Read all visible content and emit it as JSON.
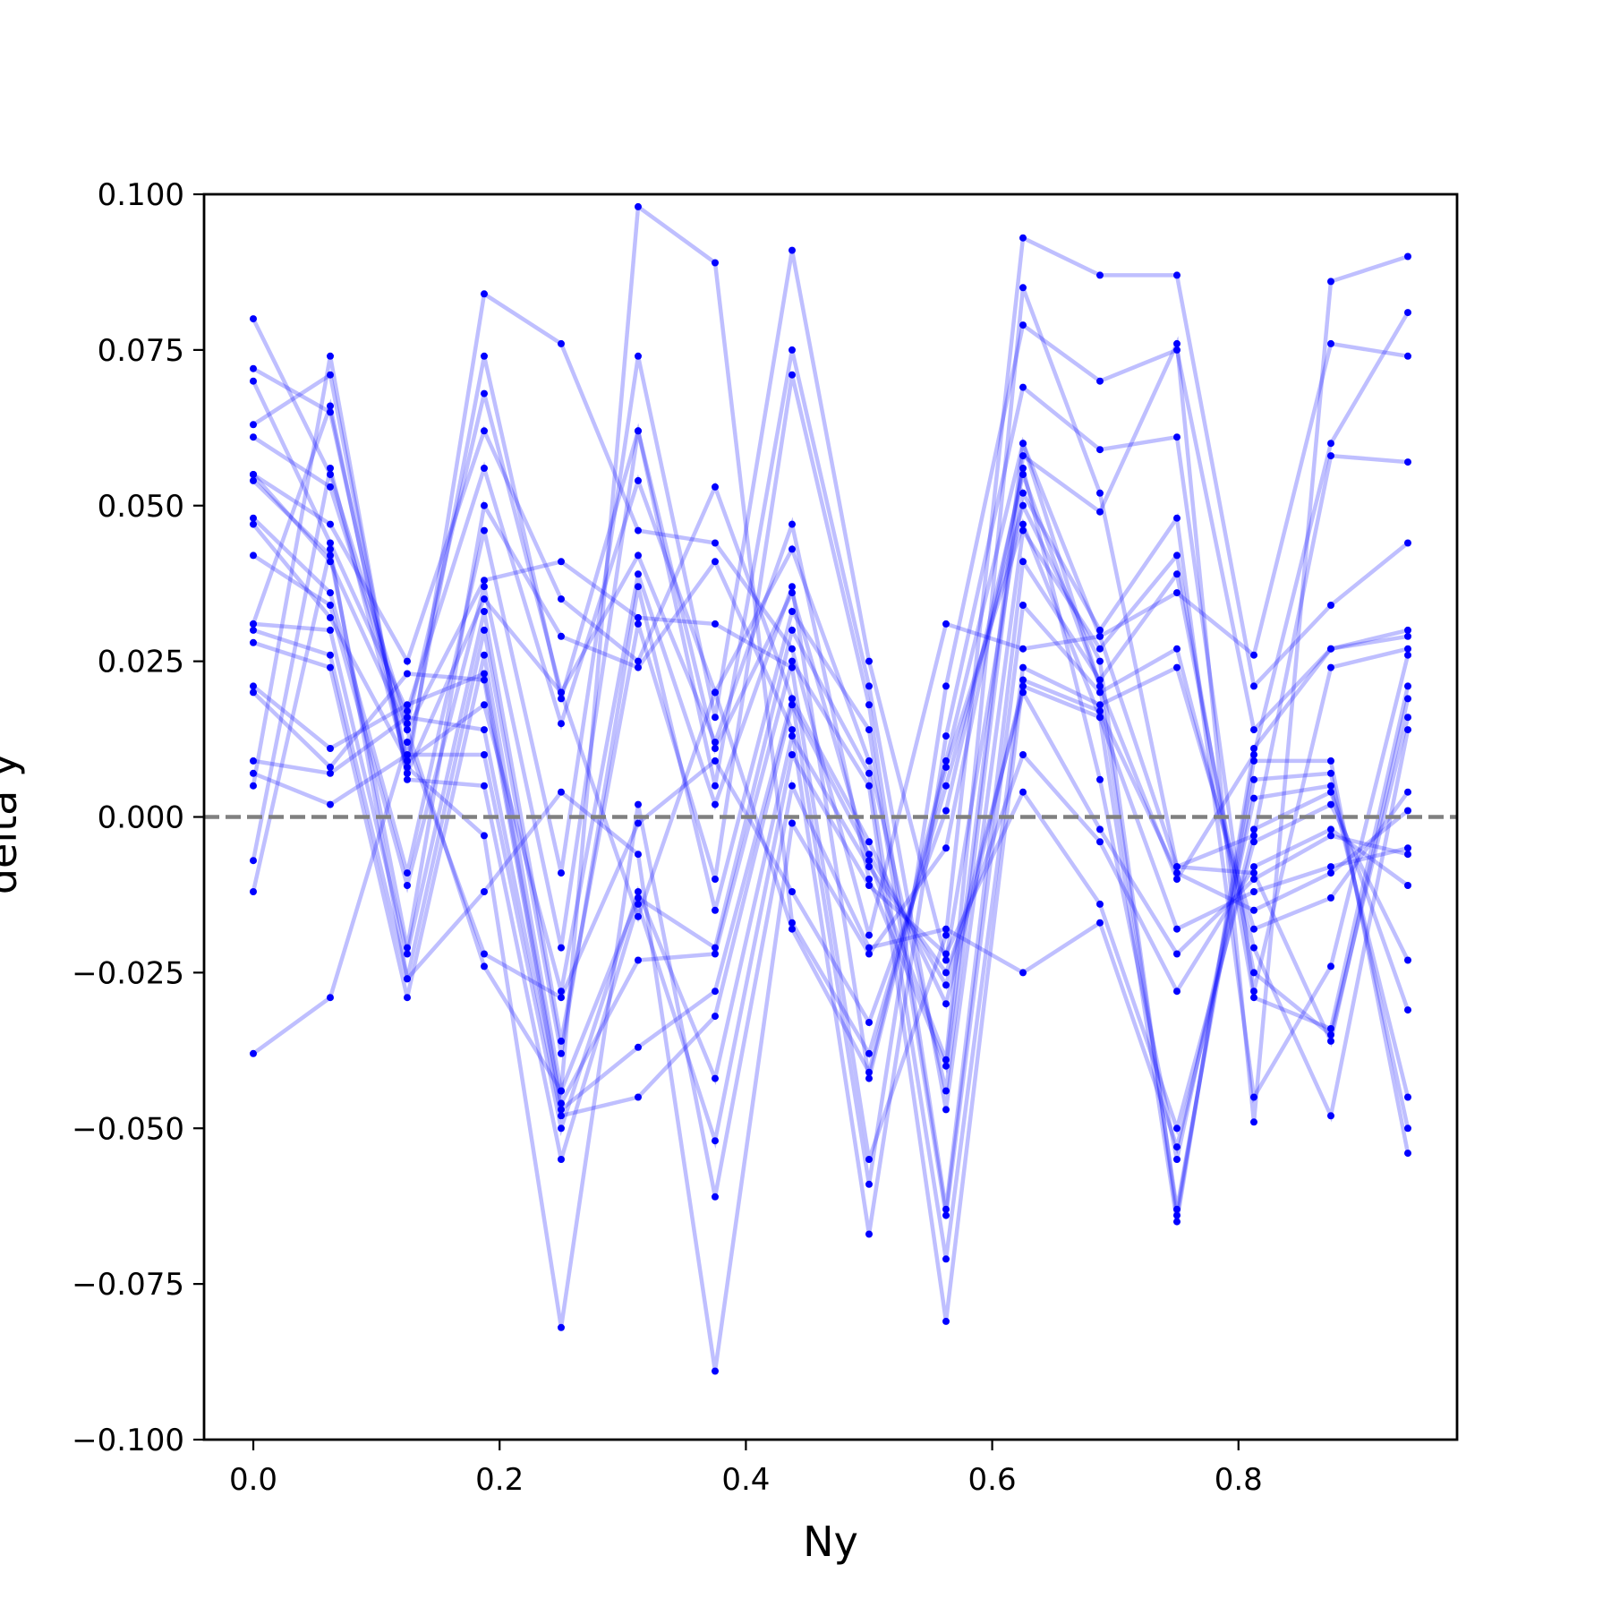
{
  "chart_data": {
    "type": "line",
    "title": "",
    "xlabel": "Ny",
    "ylabel": "delta y",
    "xlim": [
      -0.04,
      0.9775
    ],
    "ylim": [
      -0.1,
      0.1
    ],
    "xticks": [
      "0.0",
      "0.2",
      "0.4",
      "0.6",
      "0.8"
    ],
    "xtick_values": [
      0.0,
      0.2,
      0.4,
      0.6,
      0.8
    ],
    "yticks": [
      "0.100",
      "0.075",
      "0.050",
      "0.025",
      "0.000",
      "−0.025",
      "−0.050",
      "−0.075",
      "−0.100"
    ],
    "ytick_values": [
      0.1,
      0.075,
      0.05,
      0.025,
      0.0,
      -0.025,
      -0.05,
      -0.075,
      -0.1
    ],
    "reference_line": {
      "y": 0.0,
      "style": "dashed",
      "color": "#808080"
    },
    "series_color": "#0000ff",
    "line_alpha": 0.25,
    "grid": false,
    "legend": "none",
    "x": [
      0.0,
      0.0625,
      0.125,
      0.1875,
      0.25,
      0.3125,
      0.375,
      0.4375,
      0.5,
      0.5625,
      0.625,
      0.6875,
      0.75,
      0.8125,
      0.875,
      0.9375
    ],
    "series": [
      {
        "values": [
          0.08,
          0.055,
          0.015,
          0.068,
          0.02,
          0.042,
          0.012,
          0.047,
          -0.01,
          -0.04,
          0.06,
          0.021,
          -0.01,
          0.01,
          0.06,
          0.081
        ]
      },
      {
        "values": [
          0.072,
          0.065,
          0.009,
          0.074,
          0.019,
          0.062,
          0.011,
          0.036,
          -0.007,
          -0.039,
          0.085,
          0.052,
          -0.008,
          -0.003,
          0.058,
          0.057
        ]
      },
      {
        "values": [
          0.07,
          0.044,
          0.017,
          0.056,
          0.015,
          0.054,
          0.02,
          0.043,
          0.009,
          -0.044,
          0.058,
          0.049,
          0.076,
          -0.049,
          0.086,
          0.09
        ]
      },
      {
        "values": [
          0.063,
          0.071,
          0.007,
          0.084,
          0.076,
          0.046,
          0.044,
          0.027,
          -0.019,
          0.031,
          0.027,
          0.029,
          0.036,
          0.026,
          0.076,
          0.074
        ]
      },
      {
        "values": [
          0.061,
          0.053,
          0.014,
          0.038,
          0.041,
          0.032,
          0.031,
          0.024,
          -0.055,
          -0.019,
          0.093,
          0.087,
          0.087,
          0.021,
          0.034,
          0.044
        ]
      },
      {
        "values": [
          0.055,
          0.047,
          0.025,
          0.062,
          0.035,
          0.025,
          0.053,
          0.019,
          -0.059,
          0.021,
          0.079,
          0.07,
          0.075,
          0.014,
          0.027,
          0.029
        ]
      },
      {
        "values": [
          0.054,
          0.042,
          -0.021,
          0.05,
          0.029,
          0.024,
          0.041,
          0.014,
          -0.067,
          0.013,
          0.069,
          0.059,
          0.061,
          -0.028,
          0.024,
          0.027
        ]
      },
      {
        "values": [
          0.048,
          0.036,
          -0.009,
          0.046,
          -0.009,
          0.074,
          0.016,
          0.091,
          0.025,
          -0.023,
          0.052,
          0.03,
          0.048,
          -0.045,
          -0.024,
          0.026
        ]
      },
      {
        "values": [
          0.042,
          0.034,
          -0.011,
          0.037,
          -0.021,
          0.062,
          0.005,
          0.075,
          0.021,
          -0.047,
          0.046,
          0.027,
          0.042,
          -0.029,
          -0.034,
          0.021
        ]
      },
      {
        "values": [
          0.031,
          0.03,
          -0.022,
          0.033,
          -0.036,
          0.031,
          -0.01,
          0.071,
          0.018,
          -0.063,
          0.041,
          0.022,
          0.039,
          -0.025,
          -0.035,
          0.016
        ]
      },
      {
        "values": [
          0.03,
          0.026,
          -0.026,
          0.03,
          -0.038,
          0.037,
          -0.015,
          0.033,
          0.014,
          -0.064,
          0.034,
          0.02,
          0.027,
          -0.021,
          -0.048,
          0.014
        ]
      },
      {
        "values": [
          0.028,
          0.024,
          -0.029,
          0.026,
          -0.044,
          -0.013,
          -0.021,
          0.03,
          0.007,
          -0.071,
          0.024,
          0.018,
          0.024,
          -0.018,
          -0.013,
          0.004
        ]
      },
      {
        "values": [
          0.021,
          0.011,
          0.018,
          0.023,
          -0.046,
          -0.023,
          -0.022,
          0.025,
          0.005,
          -0.081,
          0.022,
          0.017,
          -0.009,
          -0.015,
          -0.009,
          0.001
        ]
      },
      {
        "values": [
          0.02,
          0.008,
          0.023,
          0.022,
          -0.047,
          -0.037,
          -0.028,
          0.019,
          -0.004,
          -0.03,
          0.021,
          0.016,
          -0.018,
          -0.012,
          -0.008,
          -0.005
        ]
      },
      {
        "values": [
          0.009,
          0.007,
          0.016,
          0.014,
          -0.048,
          -0.045,
          -0.032,
          0.018,
          -0.006,
          -0.027,
          0.02,
          -0.002,
          -0.022,
          -0.01,
          -0.003,
          -0.006
        ]
      },
      {
        "values": [
          0.007,
          0.002,
          0.01,
          0.01,
          -0.05,
          -0.012,
          -0.042,
          0.013,
          -0.008,
          -0.025,
          0.01,
          -0.004,
          -0.028,
          -0.008,
          -0.002,
          -0.011
        ]
      },
      {
        "values": [
          0.005,
          0.074,
          0.006,
          0.005,
          -0.055,
          -0.014,
          -0.052,
          0.01,
          -0.011,
          -0.022,
          0.004,
          -0.014,
          -0.05,
          -0.004,
          0.002,
          -0.023
        ]
      },
      {
        "values": [
          -0.007,
          0.056,
          0.008,
          -0.003,
          -0.082,
          0.002,
          -0.061,
          0.005,
          -0.021,
          -0.018,
          -0.025,
          -0.017,
          -0.053,
          -0.002,
          0.004,
          -0.031
        ]
      },
      {
        "values": [
          -0.012,
          0.043,
          -0.026,
          -0.012,
          0.004,
          -0.006,
          -0.089,
          -0.001,
          -0.022,
          -0.005,
          0.056,
          0.006,
          -0.055,
          0.003,
          0.005,
          -0.045
        ]
      },
      {
        "values": [
          -0.038,
          -0.029,
          0.012,
          -0.022,
          -0.029,
          -0.001,
          0.009,
          -0.012,
          -0.033,
          0.001,
          0.055,
          0.021,
          -0.063,
          0.006,
          0.007,
          -0.05
        ]
      },
      {
        "values": [
          0.055,
          0.041,
          0.014,
          -0.024,
          -0.044,
          0.098,
          0.089,
          -0.017,
          -0.038,
          0.005,
          0.05,
          0.025,
          -0.064,
          0.009,
          0.009,
          -0.054
        ]
      },
      {
        "values": [
          0.047,
          0.032,
          0.009,
          0.018,
          -0.028,
          0.039,
          0.002,
          0.037,
          -0.042,
          0.008,
          0.047,
          0.016,
          -0.065,
          0.011,
          0.027,
          0.03
        ]
      },
      {
        "values": [
          0.031,
          0.066,
          0.007,
          0.035,
          0.02,
          -0.016,
          0.02,
          -0.018,
          -0.041,
          0.009,
          0.06,
          0.029,
          -0.008,
          -0.009,
          -0.036,
          0.019
        ]
      }
    ]
  }
}
